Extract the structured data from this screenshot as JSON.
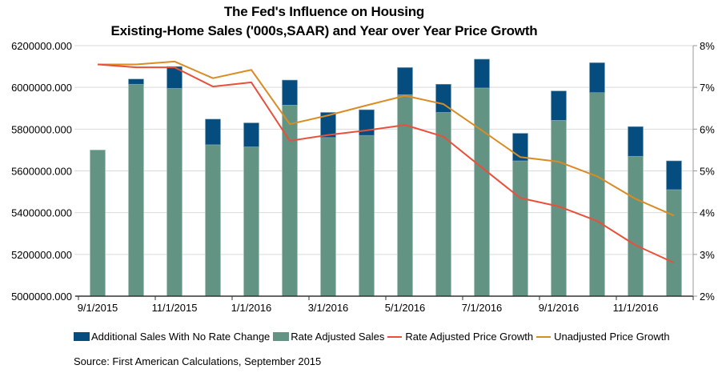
{
  "chart_data": {
    "type": "bar",
    "title": "The Fed's Influence on Housing",
    "subtitle": "Existing-Home Sales ('000s,SAAR) and Year over Year Price Growth",
    "categories": [
      "9/1/2015",
      "10/1/2015",
      "11/1/2015",
      "12/1/2015",
      "1/1/2016",
      "2/1/2016",
      "3/1/2016",
      "4/1/2016",
      "5/1/2016",
      "6/1/2016",
      "7/1/2016",
      "8/1/2016",
      "9/1/2016",
      "10/1/2016",
      "11/1/2016",
      "12/1/2016"
    ],
    "x_tick_labels": [
      "9/1/2015",
      "11/1/2015",
      "1/1/2016",
      "3/1/2016",
      "5/1/2016",
      "7/1/2016",
      "9/1/2016",
      "11/1/2016"
    ],
    "stacked": true,
    "series": [
      {
        "name": "Rate Adjusted Sales",
        "kind": "bar",
        "axis": "left",
        "color": "#639383",
        "values": [
          5700000,
          6015000,
          5995000,
          5725000,
          5715000,
          5915000,
          5760000,
          5770000,
          5965000,
          5880000,
          5997000,
          5648000,
          5842000,
          5975000,
          5670000,
          5510000
        ]
      },
      {
        "name": "Additional Sales With No Rate Change",
        "kind": "bar",
        "axis": "left",
        "color": "#064d7f",
        "values": [
          0,
          25000,
          105000,
          123000,
          115000,
          120000,
          120000,
          123000,
          130000,
          135000,
          138000,
          132000,
          141000,
          143000,
          142000,
          138000
        ]
      },
      {
        "name": "Rate Adjusted Price Growth",
        "kind": "line",
        "axis": "right",
        "color": "#e9503a",
        "values": [
          7.55,
          7.48,
          7.48,
          7.02,
          7.12,
          5.72,
          5.86,
          5.97,
          6.1,
          5.82,
          5.08,
          4.35,
          4.15,
          3.8,
          3.22,
          2.8
        ]
      },
      {
        "name": "Unadjusted Price Growth",
        "kind": "line",
        "axis": "right",
        "color": "#d98c23",
        "values": [
          7.55,
          7.55,
          7.62,
          7.22,
          7.42,
          6.12,
          6.33,
          6.57,
          6.8,
          6.6,
          5.97,
          5.33,
          5.22,
          4.87,
          4.33,
          3.93
        ]
      }
    ],
    "y_left": {
      "min": 5000000,
      "max": 6200000,
      "step": 200000,
      "tick_labels": [
        "5000000.000",
        "5200000.000",
        "5400000.000",
        "5600000.000",
        "5800000.000",
        "6000000.000",
        "6200000.000"
      ]
    },
    "y_right": {
      "min": 2,
      "max": 8,
      "step": 1,
      "tick_labels": [
        "2%",
        "3%",
        "4%",
        "5%",
        "6%",
        "7%",
        "8%"
      ]
    },
    "xlabel": "",
    "ylabel": "",
    "grid": true,
    "legend_position": "bottom",
    "legend": [
      "Additional Sales With No Rate Change",
      "Rate Adjusted Sales",
      "Rate Adjusted Price Growth",
      "Unadjusted Price Growth"
    ]
  },
  "source": "Source: First American Calculations, September 2015"
}
